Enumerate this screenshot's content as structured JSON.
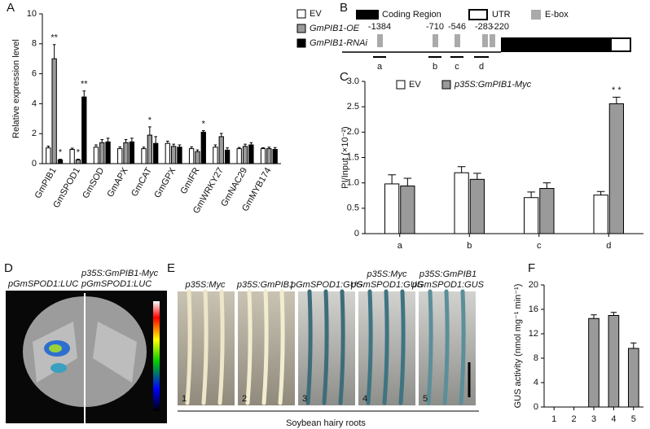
{
  "chart_data": [
    {
      "type": "bar",
      "panel": "A",
      "ylabel": "Relative expression level",
      "categories": [
        "GmPIB1",
        "GmSPOD1",
        "GmSOD",
        "GmAPX",
        "GmCAT",
        "GmGPX",
        "GmIFR",
        "GmWRKY27",
        "GmNAC29",
        "GmMYB174"
      ],
      "series": [
        {
          "name": "EV",
          "color": "#ffffff",
          "values": [
            1.05,
            0.95,
            1.1,
            1.0,
            1.0,
            1.35,
            1.0,
            1.1,
            1.0,
            1.0
          ],
          "errors": [
            0.12,
            0.08,
            0.15,
            0.12,
            0.1,
            0.15,
            0.12,
            0.15,
            0.08,
            0.06
          ]
        },
        {
          "name": "GmPIB1-OE",
          "color": "#9a9a9a",
          "values": [
            7.0,
            0.25,
            1.4,
            1.4,
            1.9,
            1.15,
            0.8,
            1.8,
            1.15,
            1.0
          ],
          "errors": [
            0.95,
            0.05,
            0.2,
            0.2,
            0.55,
            0.15,
            0.12,
            0.22,
            0.15,
            0.1
          ]
        },
        {
          "name": "GmPIB1-RNAi",
          "color": "#000000",
          "values": [
            0.25,
            4.45,
            1.45,
            1.45,
            1.35,
            1.1,
            2.1,
            0.9,
            1.25,
            0.95
          ],
          "errors": [
            0.05,
            0.4,
            0.25,
            0.25,
            0.45,
            0.15,
            0.1,
            0.15,
            0.15,
            0.12
          ]
        }
      ],
      "annotations": [
        {
          "text": "**",
          "category": 0,
          "series": 1
        },
        {
          "text": "*",
          "category": 0,
          "series": 2
        },
        {
          "text": "*",
          "category": 1,
          "series": 1
        },
        {
          "text": "**",
          "category": 1,
          "series": 2
        },
        {
          "text": "*",
          "category": 4,
          "series": 1
        },
        {
          "text": "*",
          "category": 6,
          "series": 2
        }
      ],
      "ylim": [
        0,
        10
      ],
      "yticks": [
        0,
        2,
        4,
        6,
        8,
        10
      ]
    },
    {
      "type": "bar",
      "panel": "C",
      "ylabel": "PI/Input (×10⁻²)",
      "categories": [
        "a",
        "b",
        "c",
        "d"
      ],
      "series": [
        {
          "name": "EV",
          "color": "#ffffff",
          "values": [
            0.98,
            1.2,
            0.71,
            0.76
          ],
          "errors": [
            0.18,
            0.12,
            0.11,
            0.07
          ]
        },
        {
          "name": "p35S:GmPIB1-Myc",
          "color": "#9a9a9a",
          "values": [
            0.94,
            1.07,
            0.89,
            2.56
          ],
          "errors": [
            0.15,
            0.12,
            0.11,
            0.13
          ]
        }
      ],
      "annotations": [
        {
          "text": "* *",
          "category": 3,
          "series": 1
        }
      ],
      "ylim": [
        0,
        3
      ],
      "yticks": [
        0,
        0.5,
        {
          "value": 1,
          "label": "1.0"
        },
        1.5,
        {
          "value": 2,
          "label": "2.0"
        },
        2.5,
        {
          "value": 3,
          "label": "3.0"
        }
      ]
    },
    {
      "type": "bar",
      "panel": "F",
      "ylabel": "GUS activity (nmol mg⁻¹ min⁻¹)",
      "categories": [
        "1",
        "2",
        "3",
        "4",
        "5"
      ],
      "color": "#9a9a9a",
      "values": [
        0,
        0,
        14.5,
        15,
        9.6
      ],
      "errors": [
        null,
        null,
        0.6,
        0.5,
        0.9
      ],
      "ylim": [
        0,
        20
      ],
      "yticks": [
        0,
        4,
        8,
        12,
        16,
        20
      ]
    }
  ],
  "promoter_diagram": {
    "panel": "B",
    "legend": [
      "Coding Region",
      "UTR",
      "E-box"
    ],
    "positions": [
      "-1384",
      "-710",
      "-546",
      "-283",
      "-220"
    ],
    "fragments": [
      "a",
      "b",
      "c",
      "d"
    ]
  },
  "luciferase_image": {
    "panel": "D",
    "labels": [
      "pGmSPOD1:LUC",
      "p35S:GmPIB1-Myc",
      "pGmSPOD1:LUC"
    ]
  },
  "gus_image": {
    "panel": "E",
    "labels": [
      "p35S:Myc",
      "p35S:GmPIB1",
      "pGmSPOD1:GUS",
      "p35S:Myc",
      "pGmSPOD1:GUS",
      "p35S:GmPIB1",
      "pGmSPOD1:GUS"
    ],
    "numbers": [
      "1",
      "2",
      "3",
      "4",
      "5"
    ],
    "caption": "Soybean hairy roots"
  }
}
